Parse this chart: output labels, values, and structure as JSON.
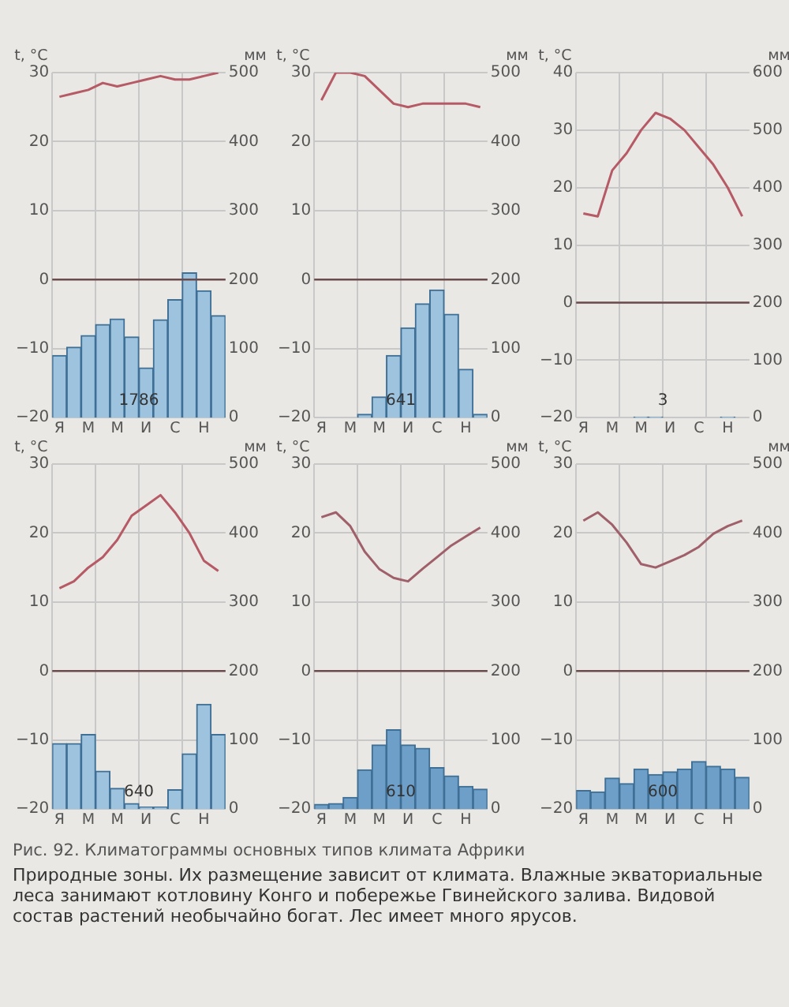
{
  "chart_data": [
    {
      "type": "bar",
      "ylabel": "t, °C",
      "y2label": "мм",
      "categories": [
        "Я",
        null,
        "М",
        null,
        "М",
        null,
        "И",
        null,
        "С",
        null,
        "Н",
        null
      ],
      "ylim": [
        -20,
        30
      ],
      "yticks": [
        -20,
        -10,
        0,
        10,
        20,
        30
      ],
      "y2lim": [
        0,
        500
      ],
      "y2ticks": [
        0,
        100,
        200,
        300,
        400,
        500
      ],
      "grid": true,
      "ref_lines": [
        {
          "axis": "y",
          "value": 0,
          "color": "#6b4b4b"
        }
      ],
      "annotations": [
        "1786"
      ],
      "series": [
        {
          "axis": "y2",
          "color": "#9dc3df",
          "values": [
            90,
            102,
            119,
            135,
            143,
            117,
            72,
            142,
            171,
            210,
            184,
            148
          ]
        },
        {
          "type": "line",
          "axis": "y",
          "color": "#b65a66",
          "values": [
            26.5,
            27,
            27.5,
            28.5,
            28,
            28.5,
            29,
            29.5,
            29,
            29,
            29.5,
            30
          ]
        }
      ]
    },
    {
      "type": "bar",
      "ylabel": "t, °C",
      "y2label": "мм",
      "categories": [
        "Я",
        null,
        "М",
        null,
        "М",
        null,
        "И",
        null,
        "С",
        null,
        "Н",
        null
      ],
      "ylim": [
        -20,
        30
      ],
      "yticks": [
        -20,
        -10,
        0,
        10,
        20,
        30
      ],
      "y2lim": [
        0,
        500
      ],
      "y2ticks": [
        0,
        100,
        200,
        300,
        400,
        500
      ],
      "grid": true,
      "ref_lines": [
        {
          "axis": "y",
          "value": 0,
          "color": "#6b4b4b"
        }
      ],
      "annotations": [
        "641"
      ],
      "series": [
        {
          "axis": "y2",
          "color": "#9dc3df",
          "values": [
            0,
            0,
            0,
            5,
            30,
            90,
            130,
            165,
            185,
            150,
            70,
            5
          ]
        },
        {
          "type": "line",
          "axis": "y",
          "color": "#b65a66",
          "values": [
            26,
            30,
            30,
            29.5,
            27.5,
            25.5,
            25,
            25.5,
            25.5,
            25.5,
            25.5,
            25
          ]
        }
      ]
    },
    {
      "type": "bar",
      "ylabel": "t, °C",
      "y2label": "мм",
      "categories": [
        "Я",
        null,
        "М",
        null,
        "М",
        null,
        "И",
        null,
        "С",
        null,
        "Н",
        null
      ],
      "ylim": [
        -20,
        40
      ],
      "yticks": [
        -20,
        -10,
        0,
        10,
        20,
        30,
        40
      ],
      "y2lim": [
        0,
        600
      ],
      "y2ticks": [
        0,
        100,
        200,
        300,
        400,
        500,
        600
      ],
      "grid": true,
      "ref_lines": [
        {
          "axis": "y",
          "value": 0,
          "color": "#6b4b4b"
        }
      ],
      "annotations": [
        "3"
      ],
      "series": [
        {
          "axis": "y2",
          "color": "#9dc3df",
          "values": [
            0,
            0,
            0,
            0,
            1,
            1,
            0,
            0,
            0,
            0,
            1,
            0
          ]
        },
        {
          "type": "line",
          "axis": "y",
          "color": "#b65a66",
          "values": [
            15.5,
            15,
            23,
            26,
            30,
            33,
            32,
            30,
            27,
            24,
            20,
            15
          ]
        }
      ]
    },
    {
      "type": "bar",
      "ylabel": "t, °C",
      "y2label": "мм",
      "categories": [
        "Я",
        null,
        "М",
        null,
        "М",
        null,
        "И",
        null,
        "С",
        null,
        "Н",
        null
      ],
      "ylim": [
        -20,
        30
      ],
      "yticks": [
        -20,
        -10,
        0,
        10,
        20,
        30
      ],
      "y2lim": [
        0,
        500
      ],
      "y2ticks": [
        0,
        100,
        200,
        300,
        400,
        500
      ],
      "grid": true,
      "ref_lines": [
        {
          "axis": "y",
          "value": 0,
          "color": "#6b4b4b"
        }
      ],
      "annotations": [
        "640"
      ],
      "series": [
        {
          "axis": "y2",
          "color": "#9dc3df",
          "values": [
            95,
            95,
            108,
            55,
            30,
            8,
            3,
            3,
            28,
            80,
            152,
            108
          ]
        },
        {
          "type": "line",
          "axis": "y",
          "color": "#b65a66",
          "values": [
            12,
            13,
            15,
            16.5,
            19,
            22.5,
            24,
            25.5,
            23,
            20,
            16,
            14.5
          ]
        }
      ]
    },
    {
      "type": "bar",
      "ylabel": "t, °C",
      "y2label": "мм",
      "categories": [
        "Я",
        null,
        "М",
        null,
        "М",
        null,
        "И",
        null,
        "С",
        null,
        "Н",
        null
      ],
      "ylim": [
        -20,
        30
      ],
      "yticks": [
        -20,
        -10,
        0,
        10,
        20,
        30
      ],
      "y2lim": [
        0,
        500
      ],
      "y2ticks": [
        0,
        100,
        200,
        300,
        400,
        500
      ],
      "grid": true,
      "ref_lines": [
        {
          "axis": "y",
          "value": 0,
          "color": "#6b4b4b"
        }
      ],
      "annotations": [
        "610"
      ],
      "series": [
        {
          "axis": "y2",
          "color": "#6d9fc8",
          "values": [
            7,
            8,
            17,
            57,
            93,
            115,
            93,
            88,
            60,
            48,
            33,
            29
          ]
        },
        {
          "type": "line",
          "axis": "y",
          "color": "#a0606a",
          "values": [
            22.3,
            23,
            21,
            17.3,
            14.8,
            13.5,
            13,
            14.8,
            16.5,
            18.2,
            19.5,
            20.8
          ]
        }
      ]
    },
    {
      "type": "bar",
      "ylabel": "t, °C",
      "y2label": "мм",
      "categories": [
        "Я",
        null,
        "М",
        null,
        "М",
        null,
        "И",
        null,
        "С",
        null,
        "Н",
        null
      ],
      "ylim": [
        -20,
        30
      ],
      "yticks": [
        -20,
        -10,
        0,
        10,
        20,
        30
      ],
      "y2lim": [
        0,
        500
      ],
      "y2ticks": [
        0,
        100,
        200,
        300,
        400,
        500
      ],
      "grid": true,
      "ref_lines": [
        {
          "axis": "y",
          "value": 0,
          "color": "#6b4b4b"
        }
      ],
      "annotations": [
        "600",
        "Рис. 92. Климатограммы основных типов климата Африки",
        "Природные зоны. Их размещение зависит от климата. Влажные экваториальные леса занимают котловину Конго и побережье Гвинейского залива. Видовой состав растений необычайно богат. Лес имеет много ярусов."
      ],
      "series": [
        {
          "axis": "y2",
          "color": "#6d9fc8",
          "values": [
            27,
            25,
            45,
            37,
            58,
            50,
            54,
            58,
            69,
            62,
            58,
            46
          ]
        },
        {
          "type": "line",
          "axis": "y",
          "color": "#a0606a",
          "values": [
            21.8,
            23,
            21.2,
            18.6,
            15.5,
            15,
            15.9,
            16.8,
            18,
            19.9,
            21,
            21.8
          ]
        }
      ]
    }
  ]
}
